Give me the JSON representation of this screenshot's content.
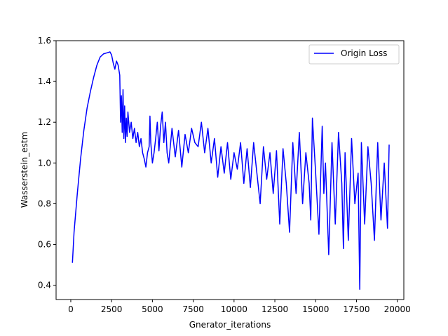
{
  "chart_data": {
    "type": "line",
    "xlabel": "Gnerator_iterations",
    "ylabel": "Wasserstein_estm",
    "xlim": [
      -900,
      20400
    ],
    "ylim": [
      0.33,
      1.6
    ],
    "xticks": [
      0,
      2500,
      5000,
      7500,
      10000,
      12500,
      15000,
      17500,
      20000
    ],
    "yticks": [
      0.4,
      0.6,
      0.8,
      1.0,
      1.2,
      1.4,
      1.6
    ],
    "xtick_labels": [
      "0",
      "2500",
      "5000",
      "7500",
      "10000",
      "12500",
      "15000",
      "17500",
      "20000"
    ],
    "ytick_labels": [
      "0.4",
      "0.6",
      "0.8",
      "1.0",
      "1.2",
      "1.4",
      "1.6"
    ],
    "grid": false,
    "legend_position": "top-right",
    "series": [
      {
        "name": "Origin Loss",
        "color": "#0000ff",
        "x": [
          100,
          200,
          400,
          600,
          800,
          1000,
          1200,
          1400,
          1600,
          1800,
          2000,
          2200,
          2400,
          2500,
          2600,
          2700,
          2800,
          2900,
          3000,
          3050,
          3100,
          3150,
          3200,
          3250,
          3300,
          3350,
          3400,
          3450,
          3500,
          3600,
          3700,
          3800,
          3900,
          4000,
          4100,
          4200,
          4300,
          4400,
          4500,
          4600,
          4700,
          4800,
          4850,
          4900,
          5000,
          5100,
          5200,
          5300,
          5400,
          5500,
          5600,
          5700,
          5800,
          5900,
          6000,
          6200,
          6400,
          6600,
          6800,
          7000,
          7200,
          7400,
          7600,
          7800,
          8000,
          8200,
          8400,
          8600,
          8800,
          9000,
          9200,
          9400,
          9600,
          9800,
          10000,
          10200,
          10400,
          10600,
          10800,
          11000,
          11200,
          11400,
          11600,
          11800,
          12000,
          12200,
          12400,
          12600,
          12800,
          13000,
          13200,
          13400,
          13600,
          13800,
          14000,
          14200,
          14400,
          14600,
          14700,
          14800,
          15000,
          15200,
          15400,
          15500,
          15600,
          15800,
          16000,
          16200,
          16400,
          16600,
          16700,
          16800,
          17000,
          17200,
          17400,
          17600,
          17700,
          17800,
          18000,
          18200,
          18400,
          18600,
          18800,
          19000,
          19200,
          19400,
          19500
        ],
        "values": [
          0.51,
          0.66,
          0.85,
          1.02,
          1.16,
          1.27,
          1.35,
          1.42,
          1.48,
          1.52,
          1.535,
          1.54,
          1.545,
          1.53,
          1.49,
          1.46,
          1.5,
          1.48,
          1.43,
          1.2,
          1.33,
          1.15,
          1.36,
          1.12,
          1.28,
          1.1,
          1.22,
          1.13,
          1.25,
          1.15,
          1.2,
          1.12,
          1.17,
          1.1,
          1.15,
          1.08,
          1.12,
          1.05,
          1.02,
          0.98,
          1.05,
          1.08,
          1.23,
          1.1,
          1.0,
          1.05,
          1.12,
          1.2,
          1.06,
          1.18,
          1.25,
          1.1,
          1.2,
          1.05,
          1.0,
          1.17,
          1.03,
          1.16,
          0.98,
          1.14,
          1.05,
          1.17,
          1.1,
          1.08,
          1.2,
          1.05,
          1.17,
          1.0,
          1.12,
          0.93,
          1.08,
          0.95,
          1.1,
          0.92,
          1.05,
          0.97,
          1.1,
          0.9,
          1.07,
          0.88,
          1.1,
          0.95,
          0.8,
          1.08,
          0.92,
          1.05,
          0.85,
          1.06,
          0.7,
          1.07,
          0.9,
          0.66,
          1.1,
          0.85,
          1.15,
          0.8,
          1.05,
          0.9,
          0.72,
          1.22,
          0.95,
          0.65,
          1.18,
          0.85,
          1.0,
          0.55,
          1.1,
          0.7,
          1.15,
          0.9,
          0.58,
          1.05,
          0.62,
          1.12,
          0.8,
          0.95,
          0.38,
          1.1,
          0.7,
          1.08,
          0.9,
          0.62,
          1.1,
          0.72,
          1.0,
          0.68,
          1.09
        ]
      }
    ]
  }
}
